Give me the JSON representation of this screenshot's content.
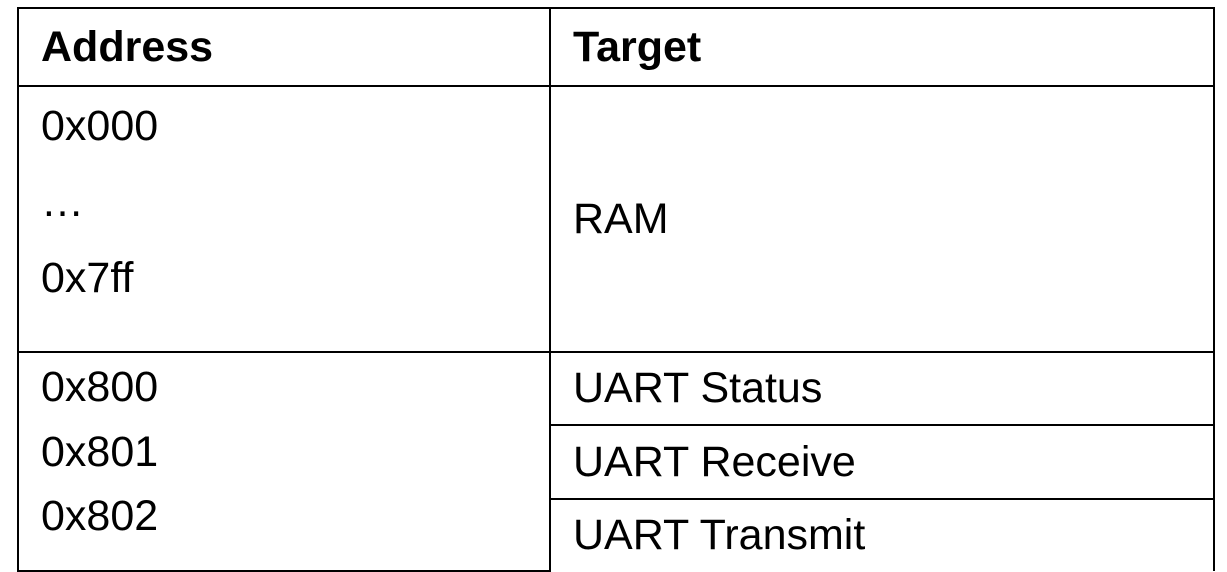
{
  "table": {
    "headers": {
      "address": "Address",
      "target": "Target"
    },
    "rows": [
      {
        "address_lines": [
          "0x000",
          "…",
          "0x7ff"
        ],
        "target": "RAM"
      },
      {
        "address_lines": [
          "0x800",
          "0x801",
          "0x802"
        ],
        "targets": [
          "UART Status",
          "UART Receive",
          "UART Transmit"
        ]
      }
    ]
  }
}
